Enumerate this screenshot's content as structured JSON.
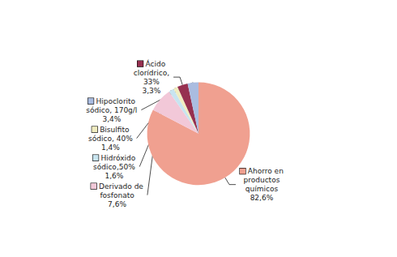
{
  "chart_data": {
    "type": "pie",
    "categories": [
      "Ahorro en\nproductos\nquímicos",
      "Derivado de\nfosfonato",
      "Hidróxido\nsódico,50%",
      "Bisulfito\nsódico, 40%",
      "Ácido\nclorídrico,\n33%",
      "Hipoclorito\nsódico, 170g/l"
    ],
    "values": [
      82.6,
      7.6,
      1.6,
      1.4,
      3.3,
      3.4
    ],
    "value_labels": [
      "82,6%",
      "7,6%",
      "1,6%",
      "1,4%",
      "3,3%",
      "3,4%"
    ],
    "colors": [
      "#F0A090",
      "#F2C8D8",
      "#C8E4F0",
      "#F0ECC0",
      "#963050",
      "#AABCE0"
    ],
    "data_labels": true
  }
}
